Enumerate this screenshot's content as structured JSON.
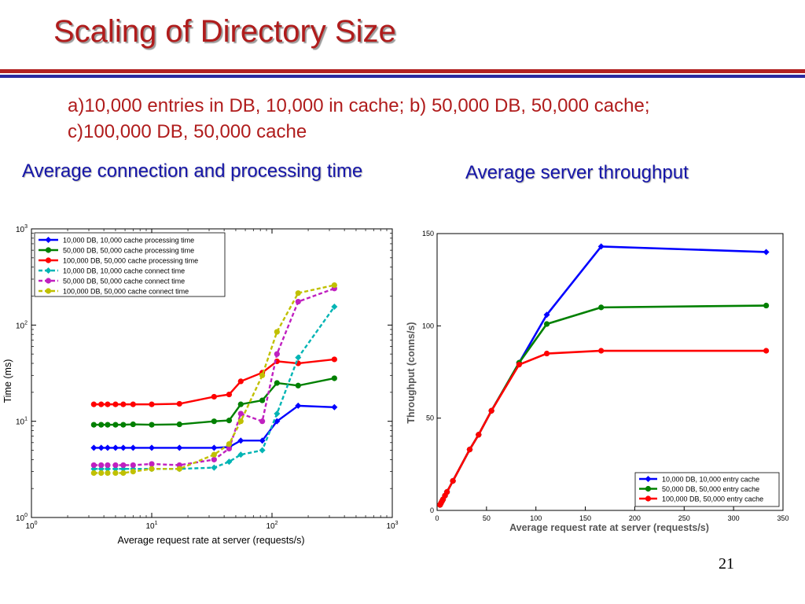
{
  "slide": {
    "title": "Scaling of Directory Size",
    "subtitle_line1": "a)10,000 entries in DB, 10,000 in cache; b) 50,000 DB, 50,000 cache;",
    "subtitle_line2": "c)100,000 DB, 50,000 cache",
    "left_heading": "Average connection  and processing time",
    "right_heading": "Average server throughput",
    "page_number": "21"
  },
  "colors": {
    "title": "#b01c1c",
    "heading": "#1616a8",
    "rule_red": "#b22222",
    "rule_blue": "#2a2aa0"
  },
  "chart_data": [
    {
      "type": "line",
      "xscale": "log",
      "yscale": "log",
      "xlim": [
        1,
        1000
      ],
      "ylim": [
        1,
        1000
      ],
      "xticks": [
        1,
        10,
        100,
        1000
      ],
      "yticks": [
        1,
        10,
        100,
        1000
      ],
      "xtick_labels": [
        [
          "10",
          "0"
        ],
        [
          "10",
          "1"
        ],
        [
          "10",
          "2"
        ],
        [
          "10",
          "3"
        ]
      ],
      "ytick_labels": [
        [
          "10",
          "0"
        ],
        [
          "10",
          "1"
        ],
        [
          "10",
          "2"
        ],
        [
          "10",
          "3"
        ]
      ],
      "xlabel": "Average request rate at server (requests/s)",
      "ylabel": "Time (ms)",
      "legend_position": "top-left",
      "grid": false,
      "series": [
        {
          "name": "10,000 DB, 10,000 cache processing time",
          "color": "#0000ff",
          "dashed": false,
          "marker": "diamond",
          "x": [
            3.3,
            3.8,
            4.3,
            5,
            5.8,
            7,
            10,
            17,
            33,
            44,
            55,
            83,
            110,
            165,
            330
          ],
          "y": [
            5.3,
            5.3,
            5.3,
            5.3,
            5.3,
            5.3,
            5.3,
            5.3,
            5.3,
            5.4,
            6.3,
            6.3,
            10,
            14.5,
            14
          ]
        },
        {
          "name": "50,000 DB, 50,000 cache processing time",
          "color": "#008000",
          "dashed": false,
          "marker": "circle",
          "x": [
            3.3,
            3.8,
            4.3,
            5,
            5.8,
            7,
            10,
            17,
            33,
            44,
            55,
            83,
            110,
            165,
            330
          ],
          "y": [
            9.2,
            9.2,
            9.2,
            9.2,
            9.2,
            9.3,
            9.2,
            9.3,
            10,
            10.2,
            15,
            16.5,
            25,
            23.5,
            28
          ]
        },
        {
          "name": "100,000 DB, 50,000 cache processing time",
          "color": "#ff0000",
          "dashed": false,
          "marker": "circle",
          "x": [
            3.3,
            3.8,
            4.3,
            5,
            5.8,
            7,
            10,
            17,
            33,
            44,
            55,
            83,
            110,
            165,
            330
          ],
          "y": [
            15,
            15,
            15,
            15,
            15,
            15,
            15,
            15.2,
            18,
            19,
            26,
            32,
            42,
            40,
            44
          ]
        },
        {
          "name": "10,000 DB, 10,000 cache connect time",
          "color": "#00b4b4",
          "dashed": true,
          "marker": "diamond",
          "x": [
            3.3,
            3.8,
            4.3,
            5,
            5.8,
            7,
            10,
            17,
            33,
            44,
            55,
            83,
            110,
            165,
            330
          ],
          "y": [
            3.2,
            3.2,
            3.2,
            3.2,
            3.2,
            3.2,
            3.2,
            3.2,
            3.3,
            3.8,
            4.5,
            5,
            12,
            46,
            155
          ]
        },
        {
          "name": "50,000 DB, 50,000 cache connect time",
          "color": "#c020c0",
          "dashed": true,
          "marker": "circle",
          "x": [
            3.3,
            3.8,
            4.3,
            5,
            5.8,
            7,
            10,
            17,
            33,
            44,
            55,
            83,
            110,
            165,
            330
          ],
          "y": [
            3.5,
            3.5,
            3.5,
            3.5,
            3.5,
            3.5,
            3.6,
            3.5,
            4,
            5.2,
            12,
            10,
            50,
            175,
            240
          ]
        },
        {
          "name": "100,000 DB, 50,000 cache connect time",
          "color": "#c0c000",
          "dashed": true,
          "marker": "circle",
          "x": [
            3.3,
            3.8,
            4.3,
            5,
            5.8,
            7,
            10,
            17,
            33,
            44,
            55,
            83,
            110,
            165,
            330
          ],
          "y": [
            2.9,
            2.9,
            2.9,
            2.9,
            2.9,
            3,
            3.2,
            3.2,
            4.5,
            5.8,
            10,
            30,
            85,
            215,
            260
          ]
        }
      ]
    },
    {
      "type": "line",
      "xlim": [
        0,
        350
      ],
      "ylim": [
        0,
        150
      ],
      "xticks": [
        0,
        50,
        100,
        150,
        200,
        250,
        300,
        350
      ],
      "yticks": [
        0,
        50,
        100,
        150
      ],
      "xlabel": "Average request rate at server (requests/s)",
      "ylabel": "Throughput (conns/s)",
      "legend_position": "bottom-right",
      "grid": false,
      "series": [
        {
          "name": "10,000 DB, 10,000 entry cache",
          "color": "#0000ff",
          "dashed": false,
          "marker": "diamond",
          "x": [
            3,
            4,
            5,
            6,
            8,
            10,
            16,
            33,
            42,
            55,
            83,
            111,
            166,
            333
          ],
          "y": [
            3,
            4,
            5,
            6,
            8,
            10,
            16,
            33,
            41,
            54,
            80,
            106,
            143,
            140
          ]
        },
        {
          "name": "50,000 DB, 50,000 entry cache",
          "color": "#008000",
          "dashed": false,
          "marker": "circle",
          "x": [
            3,
            4,
            5,
            6,
            8,
            10,
            16,
            33,
            42,
            55,
            83,
            111,
            166,
            333
          ],
          "y": [
            3,
            4,
            5,
            6,
            8,
            10,
            16,
            33,
            41,
            54,
            80,
            101,
            110,
            111
          ]
        },
        {
          "name": "100,000 DB, 50,000 entry cache",
          "color": "#ff0000",
          "dashed": false,
          "marker": "circle",
          "x": [
            3,
            4,
            5,
            6,
            8,
            10,
            16,
            33,
            42,
            55,
            83,
            111,
            166,
            333
          ],
          "y": [
            3,
            4,
            5,
            6,
            8,
            10,
            16,
            33,
            41,
            54,
            79,
            85,
            86.5,
            86.5
          ]
        }
      ]
    }
  ]
}
